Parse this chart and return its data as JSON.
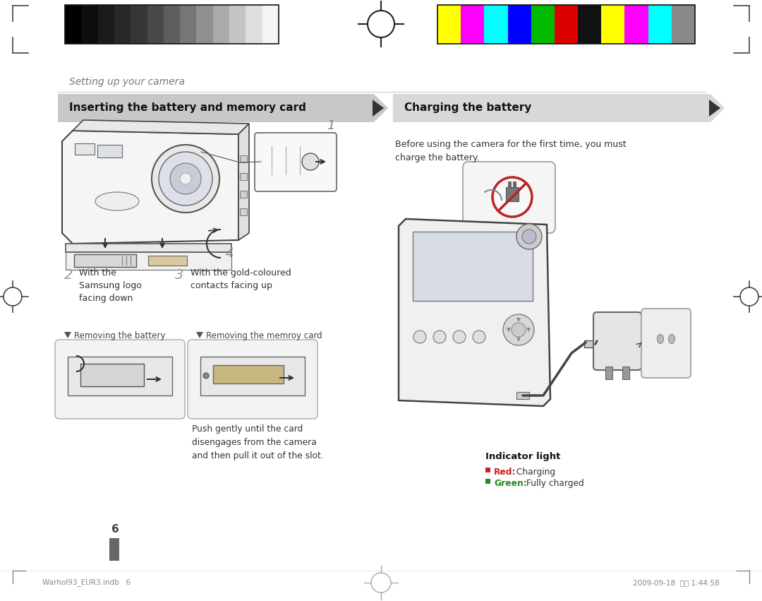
{
  "bg_color": "#ffffff",
  "top_bar_colors_dark": [
    "#000000",
    "#0d0d0d",
    "#1a1a1a",
    "#282828",
    "#363636",
    "#484848",
    "#5e5e5e",
    "#767676",
    "#909090",
    "#aaaaaa",
    "#c4c4c4",
    "#dedede",
    "#f5f5f5"
  ],
  "top_bar_colors_color": [
    "#ffff00",
    "#ff00ff",
    "#00ffff",
    "#0000ff",
    "#00bb00",
    "#dd0000",
    "#111111",
    "#ffff00",
    "#ff00ff",
    "#00ffff",
    "#888888"
  ],
  "header_left_text": "Inserting the battery and memory card",
  "header_right_text": "Charging the battery",
  "section_title": "Setting up your camera",
  "step2_text": "With the\nSamsung logo\nfacing down",
  "step3_text": "With the gold-coloured\ncontacts facing up",
  "remove_battery_label": "Removing the battery",
  "remove_card_label": "Removing the memroy card",
  "remove_card_desc": "Push gently until the card\ndisengages from the camera\nand then pull it out of the slot.",
  "charge_desc": "Before using the camera for the first time, you must\ncharge the battery.",
  "indicator_title": "Indicator light",
  "indicator_red_bold": "Red:",
  "indicator_red_rest": " Charging",
  "indicator_green_bold": "Green:",
  "indicator_green_rest": " Fully charged",
  "page_num": "6",
  "footer_left": "Warhol93_EUR3.indb   6",
  "footer_right": "2009-09-18  오후 1:44:58"
}
